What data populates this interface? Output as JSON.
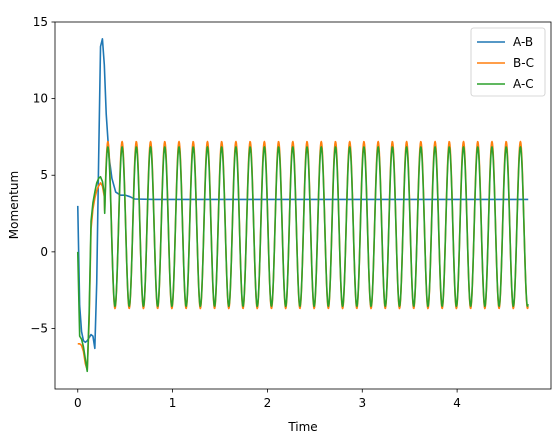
{
  "chart_data": {
    "type": "line",
    "xlabel": "Time",
    "ylabel": "Momentum",
    "xlim": [
      -0.24,
      4.99
    ],
    "ylim": [
      -8.95,
      15
    ],
    "xticks": [
      0,
      1,
      2,
      3,
      4
    ],
    "yticks": [
      -5,
      0,
      5,
      10,
      15
    ],
    "grid": false,
    "legend_position": "top-right",
    "series": [
      {
        "name": "A-B",
        "color": "#1f77b4",
        "x": [
          0,
          0.02,
          0.04,
          0.06,
          0.08,
          0.1,
          0.12,
          0.14,
          0.16,
          0.18,
          0.2,
          0.22,
          0.24,
          0.26,
          0.28,
          0.3,
          0.33,
          0.36,
          0.4,
          0.45,
          0.5,
          0.55,
          0.6,
          0.8,
          1.0,
          2.0,
          3.0,
          4.0,
          4.75
        ],
        "y": [
          3.0,
          -3.5,
          -5.2,
          -5.8,
          -5.9,
          -5.8,
          -5.6,
          -5.4,
          -5.5,
          -6.3,
          -2.0,
          6.0,
          13.4,
          13.9,
          12.2,
          9.0,
          6.2,
          4.8,
          3.9,
          3.7,
          3.7,
          3.6,
          3.45,
          3.42,
          3.42,
          3.42,
          3.42,
          3.42,
          3.42
        ]
      },
      {
        "name": "B-C",
        "color": "#ff7f0e",
        "oscillation": {
          "start": 0.28,
          "end": 4.75,
          "center": 1.75,
          "amplitude": 5.45,
          "period": 0.15,
          "start_phase": 0
        },
        "x": [
          0,
          0.02,
          0.04,
          0.06,
          0.08,
          0.1,
          0.12,
          0.14,
          0.16,
          0.18,
          0.2,
          0.22,
          0.24,
          0.26,
          0.28
        ],
        "y": [
          -6.0,
          -6.0,
          -6.1,
          -6.5,
          -7.3,
          -7.7,
          -4.5,
          1.5,
          2.8,
          3.5,
          4.0,
          4.3,
          4.5,
          4.3,
          3.6
        ]
      },
      {
        "name": "A-C",
        "color": "#2ca02c",
        "oscillation": {
          "start": 0.28,
          "end": 4.75,
          "center": 1.65,
          "amplitude": 5.2,
          "period": 0.15,
          "start_phase": 0
        },
        "x": [
          0,
          0.02,
          0.04,
          0.06,
          0.08,
          0.1,
          0.12,
          0.14,
          0.16,
          0.18,
          0.2,
          0.22,
          0.24,
          0.26,
          0.28
        ],
        "y": [
          0.0,
          -5.5,
          -5.7,
          -6.2,
          -7.0,
          -7.8,
          -4.0,
          2.0,
          3.2,
          3.9,
          4.5,
          4.8,
          4.9,
          4.6,
          3.8
        ]
      }
    ]
  }
}
